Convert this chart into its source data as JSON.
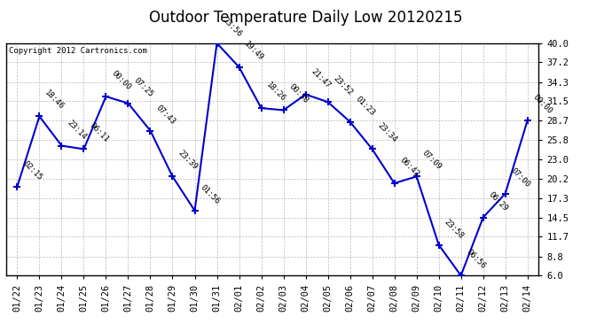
{
  "title": "Outdoor Temperature Daily Low 20120215",
  "copyright": "Copyright 2012 Cartronics.com",
  "x_labels": [
    "01/22",
    "01/23",
    "01/24",
    "01/25",
    "01/26",
    "01/27",
    "01/28",
    "01/29",
    "01/30",
    "01/31",
    "02/01",
    "02/02",
    "02/03",
    "02/04",
    "02/05",
    "02/06",
    "02/07",
    "02/08",
    "02/09",
    "02/10",
    "02/11",
    "02/12",
    "02/13",
    "02/14"
  ],
  "y_values": [
    19.0,
    29.3,
    25.0,
    24.5,
    32.2,
    31.2,
    27.2,
    20.5,
    15.5,
    40.0,
    36.5,
    30.5,
    30.2,
    32.5,
    31.4,
    28.5,
    24.5,
    19.5,
    20.5,
    10.5,
    6.0,
    14.5,
    18.0,
    28.7
  ],
  "time_labels": [
    "02:15",
    "18:46",
    "23:14",
    "06:11",
    "00:00",
    "07:25",
    "07:43",
    "23:39",
    "01:56",
    "23:56",
    "19:49",
    "18:26",
    "00:38",
    "21:47",
    "23:52",
    "01:23",
    "23:34",
    "06:42",
    "07:09",
    "23:58",
    "06:56",
    "06:29",
    "07:00",
    "00:00"
  ],
  "ylim": [
    6.0,
    40.0
  ],
  "yticks": [
    6.0,
    8.8,
    11.7,
    14.5,
    17.3,
    20.2,
    23.0,
    25.8,
    28.7,
    31.5,
    34.3,
    37.2,
    40.0
  ],
  "line_color": "#0000cc",
  "marker_color": "#0000cc",
  "background_color": "#ffffff",
  "grid_color": "#bbbbbb",
  "title_fontsize": 12,
  "tick_fontsize": 7.5,
  "annot_fontsize": 6.5,
  "copyright_fontsize": 6.5
}
